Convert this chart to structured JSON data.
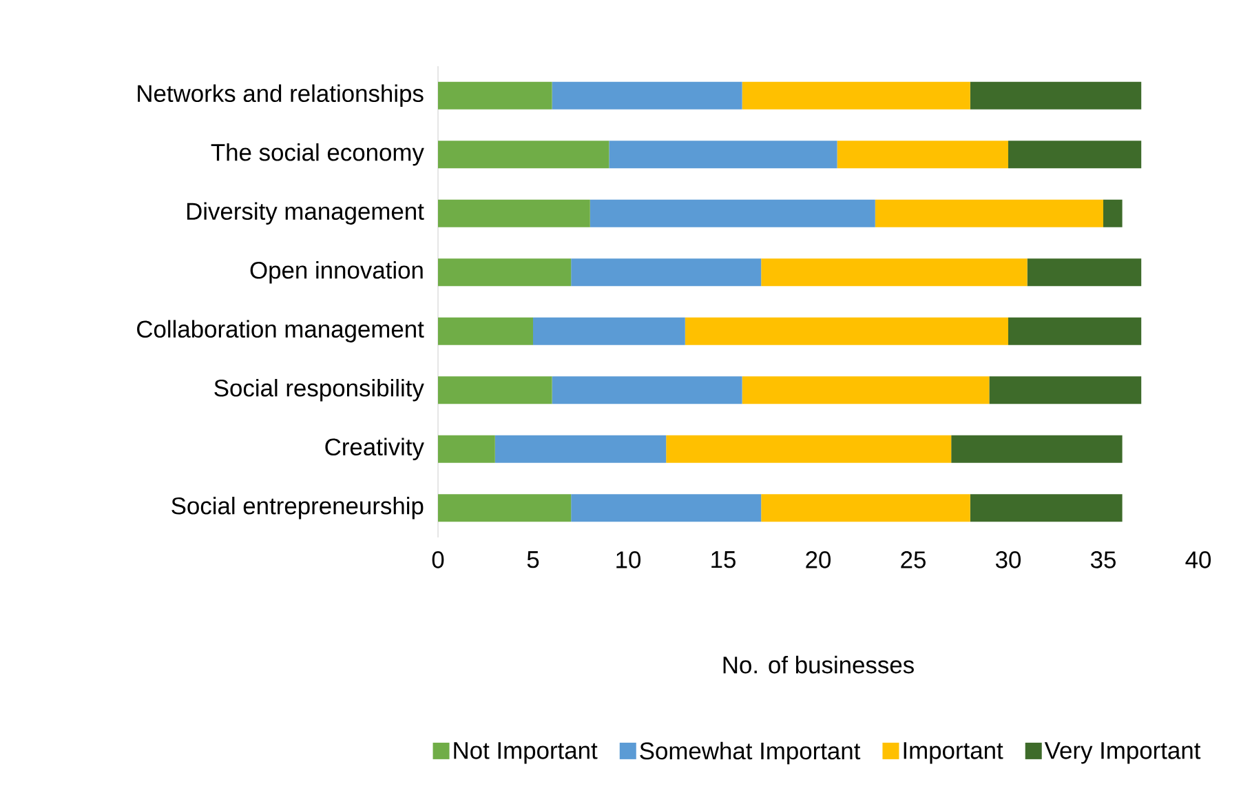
{
  "chart_data": {
    "type": "bar",
    "orientation": "horizontal",
    "stacked": true,
    "xlabel": "No. of businesses",
    "categories": [
      "Networks and relationships",
      "The social economy",
      "Diversity management",
      "Open innovation",
      "Collaboration management",
      "Social responsibility",
      "Creativity",
      "Social entrepreneurship"
    ],
    "series": [
      {
        "name": "Not Important",
        "color": "#70ad47",
        "values": [
          6,
          9,
          8,
          7,
          5,
          6,
          3,
          7
        ]
      },
      {
        "name": "Somewhat Important",
        "color": "#5b9bd5",
        "values": [
          10,
          12,
          15,
          10,
          8,
          10,
          9,
          10
        ]
      },
      {
        "name": "Important",
        "color": "#ffc000",
        "values": [
          12,
          9,
          12,
          14,
          17,
          13,
          15,
          11
        ]
      },
      {
        "name": "Very Important",
        "color": "#3e6b2a",
        "values": [
          9,
          7,
          1,
          6,
          7,
          8,
          9,
          8
        ]
      }
    ],
    "xlim": [
      0,
      40
    ],
    "xticks": [
      0,
      5,
      10,
      15,
      20,
      25,
      30,
      35,
      40
    ],
    "legend": "bottom"
  }
}
